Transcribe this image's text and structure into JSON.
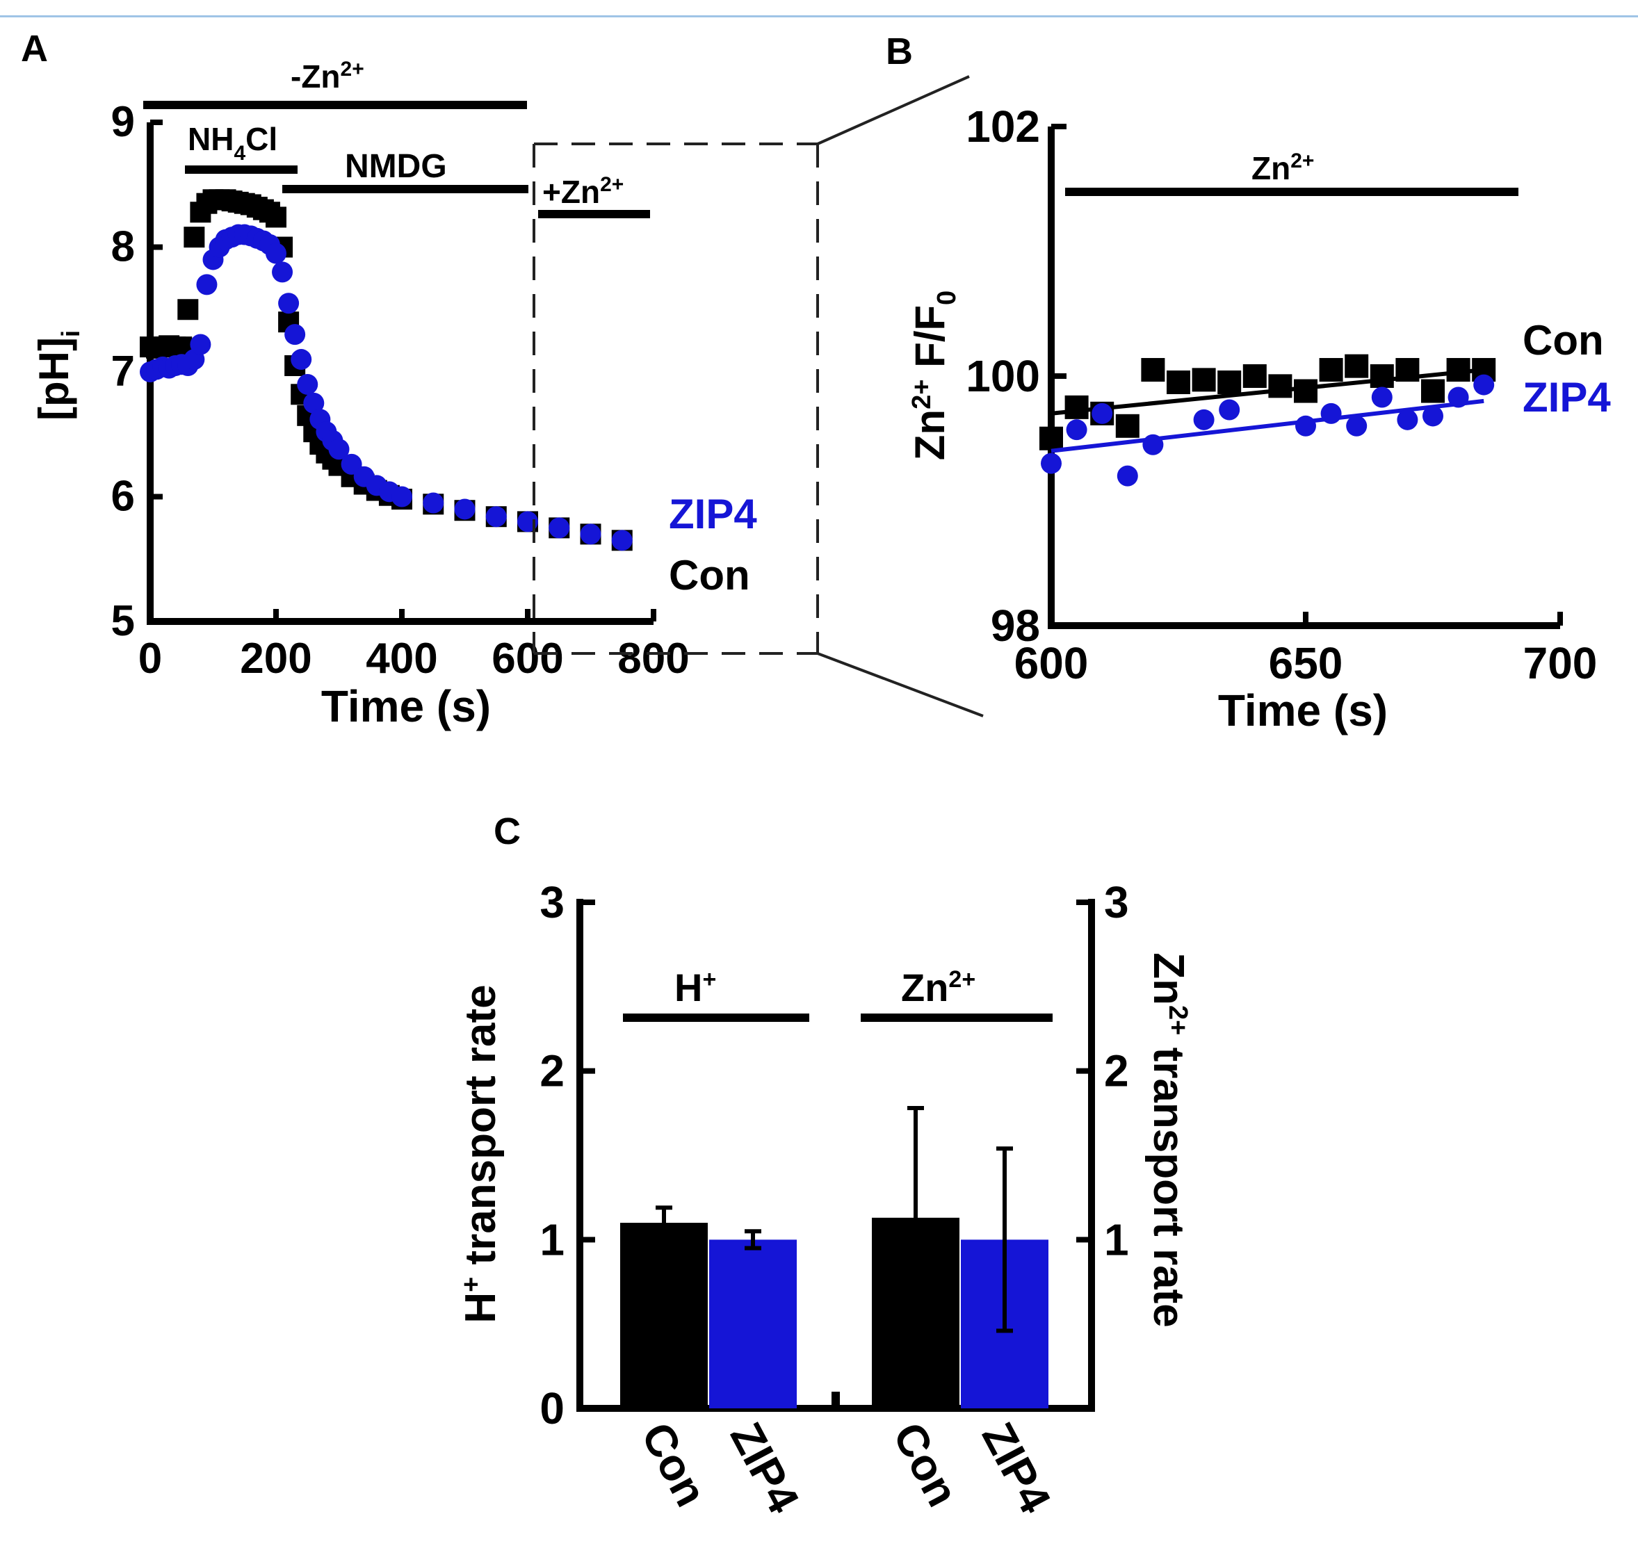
{
  "colors": {
    "con": "#000000",
    "zip4": "#1515d6",
    "axis": "#000000",
    "dash": "#222222"
  },
  "panels": {
    "a": {
      "letter": "A",
      "bar_minus_zn": "-Zn",
      "bar_nh4cl": "NH",
      "bar_nh4cl_sub": "4",
      "bar_nh4cl_tail": "Cl",
      "bar_nmdg": "NMDG",
      "bar_plus_zn": "+Zn",
      "sup": "2+"
    },
    "b": {
      "letter": "B",
      "bar_zn": "Zn",
      "sup": "2+"
    },
    "c": {
      "letter": "C",
      "bar_h": "H",
      "bar_h_sup": "+",
      "bar_zn": "Zn",
      "bar_zn_sup": "2+"
    }
  },
  "chart_data": [
    {
      "panel": "A",
      "type": "scatter",
      "xlabel": "Time (s)",
      "ylabel": "[pH]",
      "ylabel_sub": "i",
      "xlim": [
        0,
        800
      ],
      "ylim": [
        5,
        9
      ],
      "xticks": [
        0,
        200,
        400,
        600,
        800
      ],
      "yticks": [
        5,
        6,
        7,
        8,
        9
      ],
      "series": [
        {
          "name": "Con",
          "marker": "square",
          "color": "#000000",
          "x": [
            0,
            10,
            20,
            30,
            40,
            50,
            60,
            70,
            80,
            90,
            100,
            110,
            120,
            130,
            140,
            150,
            160,
            170,
            180,
            190,
            200,
            210,
            220,
            230,
            240,
            250,
            260,
            270,
            280,
            290,
            300,
            320,
            340,
            360,
            380,
            400,
            450,
            500,
            550,
            600,
            650,
            700,
            750
          ],
          "y": [
            7.2,
            7.19,
            7.2,
            7.21,
            7.2,
            7.2,
            7.5,
            8.08,
            8.28,
            8.35,
            8.38,
            8.38,
            8.38,
            8.37,
            8.36,
            8.35,
            8.34,
            8.32,
            8.3,
            8.28,
            8.24,
            8.0,
            7.4,
            7.05,
            6.82,
            6.65,
            6.52,
            6.42,
            6.35,
            6.3,
            6.25,
            6.16,
            6.1,
            6.05,
            6.01,
            5.98,
            5.94,
            5.89,
            5.84,
            5.8,
            5.75,
            5.7,
            5.65
          ]
        },
        {
          "name": "ZIP4",
          "marker": "circle",
          "color": "#1515d6",
          "x": [
            0,
            10,
            20,
            30,
            40,
            50,
            60,
            70,
            80,
            90,
            100,
            110,
            120,
            130,
            140,
            150,
            160,
            170,
            180,
            190,
            200,
            210,
            220,
            230,
            240,
            250,
            260,
            270,
            280,
            290,
            300,
            320,
            340,
            360,
            380,
            400,
            450,
            500,
            550,
            600,
            650,
            700,
            750
          ],
          "y": [
            7.0,
            7.02,
            7.04,
            7.03,
            7.05,
            7.06,
            7.05,
            7.1,
            7.22,
            7.7,
            7.9,
            8.0,
            8.06,
            8.08,
            8.1,
            8.1,
            8.09,
            8.07,
            8.05,
            8.02,
            7.95,
            7.8,
            7.55,
            7.3,
            7.1,
            6.9,
            6.75,
            6.62,
            6.52,
            6.45,
            6.38,
            6.26,
            6.16,
            6.09,
            6.04,
            6.0,
            5.95,
            5.9,
            5.84,
            5.8,
            5.75,
            5.7,
            5.65
          ]
        }
      ],
      "legend": [
        "ZIP4",
        "Con"
      ]
    },
    {
      "panel": "B",
      "type": "scatter",
      "xlabel": "Time (s)",
      "ylabel": "Zn",
      "ylabel_sup": "2+",
      "ylabel_tail": "F/F",
      "ylabel_tail_sub": "0",
      "xlim": [
        600,
        700
      ],
      "ylim": [
        98,
        102
      ],
      "xticks": [
        600,
        650,
        700
      ],
      "yticks": [
        98,
        100,
        102
      ],
      "series": [
        {
          "name": "Con",
          "marker": "square",
          "color": "#000000",
          "x": [
            600,
            605,
            610,
            615,
            620,
            625,
            630,
            635,
            640,
            645,
            650,
            655,
            660,
            665,
            670,
            675,
            680,
            685
          ],
          "y": [
            99.5,
            99.75,
            99.7,
            99.6,
            100.05,
            99.95,
            99.97,
            99.95,
            100.0,
            99.92,
            99.88,
            100.05,
            100.08,
            100.0,
            100.05,
            99.88,
            100.05,
            100.05
          ],
          "fit": [
            99.7,
            100.05
          ]
        },
        {
          "name": "ZIP4",
          "marker": "circle",
          "color": "#1515d6",
          "x": [
            600,
            605,
            610,
            615,
            620,
            630,
            635,
            650,
            655,
            660,
            665,
            670,
            675,
            680,
            685
          ],
          "y": [
            99.3,
            99.57,
            99.7,
            99.2,
            99.45,
            99.65,
            99.73,
            99.6,
            99.7,
            99.6,
            99.83,
            99.65,
            99.68,
            99.83,
            99.93
          ],
          "fit": [
            99.4,
            99.8
          ]
        }
      ],
      "legend": [
        "Con",
        "ZIP4"
      ]
    },
    {
      "panel": "C",
      "type": "bar",
      "ylabel_left": "H",
      "ylabel_left_sup": "+",
      "ylabel_left_tail": "transport rate",
      "ylabel_right": "Zn",
      "ylabel_right_sup": "2+",
      "ylabel_right_tail": "transport rate",
      "ylim": [
        0,
        3
      ],
      "yticks": [
        0,
        1,
        2,
        3
      ],
      "categories": [
        "Con",
        "ZIP4",
        "Con",
        "ZIP4"
      ],
      "values": [
        1.1,
        1.0,
        1.13,
        1.0
      ],
      "errors": [
        0.09,
        0.05,
        0.65,
        0.54
      ],
      "colors": [
        "#000000",
        "#1515d6",
        "#000000",
        "#1515d6"
      ]
    }
  ]
}
